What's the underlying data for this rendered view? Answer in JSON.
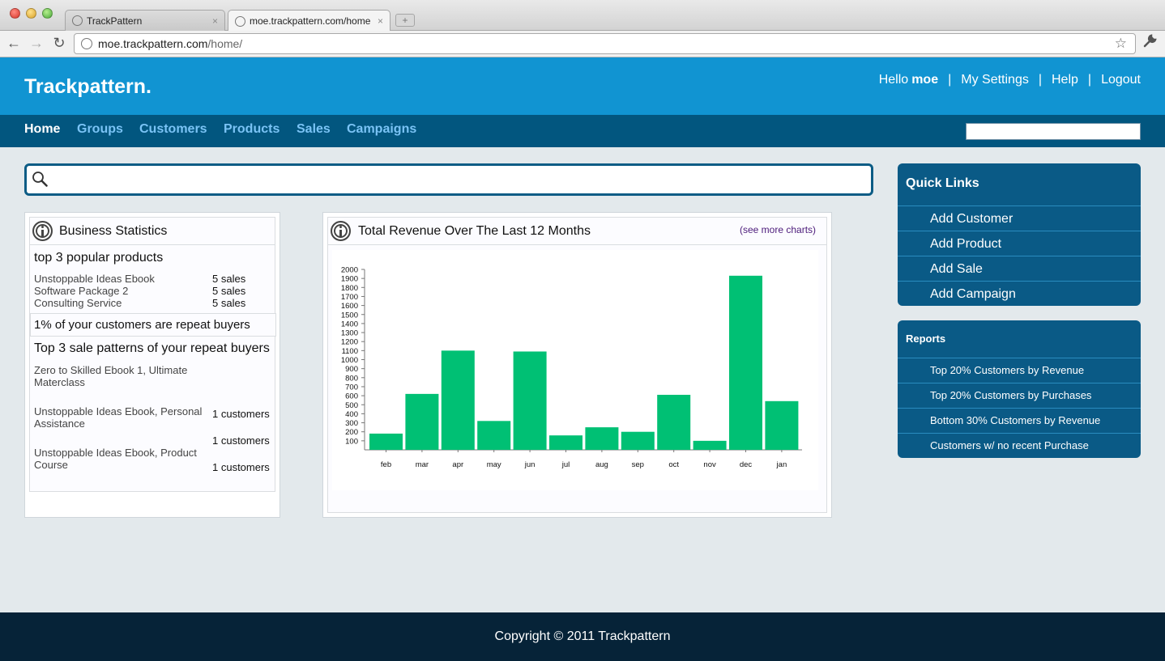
{
  "browser": {
    "tabs": [
      {
        "label": "TrackPattern",
        "close": "×"
      },
      {
        "label": "moe.trackpattern.com/home",
        "close": "×"
      }
    ],
    "new_tab": "+",
    "nav": {
      "back": "←",
      "forward": "→",
      "reload": "↻"
    },
    "url_host": "moe.trackpattern.com",
    "url_path": "/home/",
    "star": "☆",
    "wrench": "🔧"
  },
  "header": {
    "logo": "Trackpattern.",
    "hello": "Hello",
    "username": "moe",
    "separator": "|",
    "links": [
      "My Settings",
      "Help",
      "Logout"
    ]
  },
  "nav": {
    "items": [
      "Home",
      "Groups",
      "Customers",
      "Products",
      "Sales",
      "Campaigns"
    ],
    "active": "Home"
  },
  "business_stats": {
    "title": "Business Statistics",
    "popular_heading": "top 3 popular products",
    "popular": [
      {
        "name": "Unstoppable Ideas Ebook",
        "value": "5 sales"
      },
      {
        "name": "Software Package 2",
        "value": "5 sales"
      },
      {
        "name": "Consulting Service",
        "value": "5 sales"
      }
    ],
    "repeat_text": "1% of your customers are repeat buyers",
    "patterns_heading": "Top 3 sale patterns of your repeat buyers",
    "patterns": [
      {
        "name": "Zero to Skilled Ebook 1, Ultimate Materclass",
        "value": ""
      },
      {
        "name": "Unstoppable Ideas Ebook, Personal Assistance",
        "value": "1 customers"
      },
      {
        "name": "",
        "value": "1 customers"
      },
      {
        "name": "Unstoppable Ideas Ebook, Product Course",
        "value": "1 customers"
      }
    ]
  },
  "revenue": {
    "title": "Total Revenue Over The Last 12 Months",
    "see_more": "(see more charts)"
  },
  "chart_data": {
    "type": "bar",
    "title": "Total Revenue Over The Last 12 Months",
    "categories": [
      "feb",
      "mar",
      "apr",
      "may",
      "jun",
      "jul",
      "aug",
      "sep",
      "oct",
      "nov",
      "dec",
      "jan"
    ],
    "values": [
      180,
      620,
      1100,
      320,
      1090,
      160,
      250,
      200,
      610,
      100,
      1930,
      540
    ],
    "yticks": [
      100,
      200,
      300,
      400,
      500,
      600,
      700,
      800,
      900,
      1000,
      1100,
      1200,
      1300,
      1400,
      1500,
      1600,
      1700,
      1800,
      1900,
      2000
    ],
    "ylim": [
      0,
      2000
    ],
    "bar_color": "#00c074",
    "xlabel": "",
    "ylabel": "",
    "grid": false
  },
  "quick_links": {
    "title": "Quick Links",
    "items": [
      "Add Customer",
      "Add Product",
      "Add Sale",
      "Add Campaign"
    ]
  },
  "reports": {
    "title": "Reports",
    "items": [
      "Top 20% Customers by Revenue",
      "Top 20% Customers by Purchases",
      "Bottom 30% Customers by Revenue",
      "Customers w/ no recent Purchase"
    ]
  },
  "footer": {
    "text": "Copyright © 2011 Trackpattern"
  }
}
